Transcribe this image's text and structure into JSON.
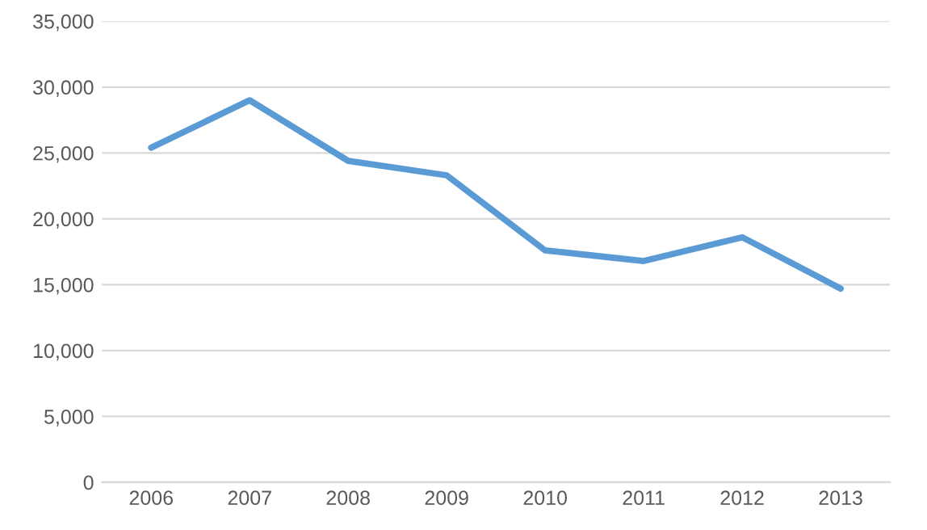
{
  "chart_data": {
    "type": "line",
    "categories": [
      "2006",
      "2007",
      "2008",
      "2009",
      "2010",
      "2011",
      "2012",
      "2013"
    ],
    "series": [
      {
        "color": "#5b9bd5",
        "values": [
          25400,
          29000,
          24400,
          23300,
          17600,
          16800,
          18600,
          14700
        ]
      }
    ],
    "ylim": [
      0,
      35000
    ],
    "yticks": [
      {
        "value": 0,
        "label": "0"
      },
      {
        "value": 5000,
        "label": "5,000"
      },
      {
        "value": 10000,
        "label": "10,000"
      },
      {
        "value": 15000,
        "label": "15,000"
      },
      {
        "value": 20000,
        "label": "20,000"
      },
      {
        "value": 25000,
        "label": "25,000"
      },
      {
        "value": 30000,
        "label": "30,000"
      },
      {
        "value": 35000,
        "label": "35,000"
      }
    ],
    "grid": "y",
    "marker": "none",
    "line_style": "solid"
  }
}
